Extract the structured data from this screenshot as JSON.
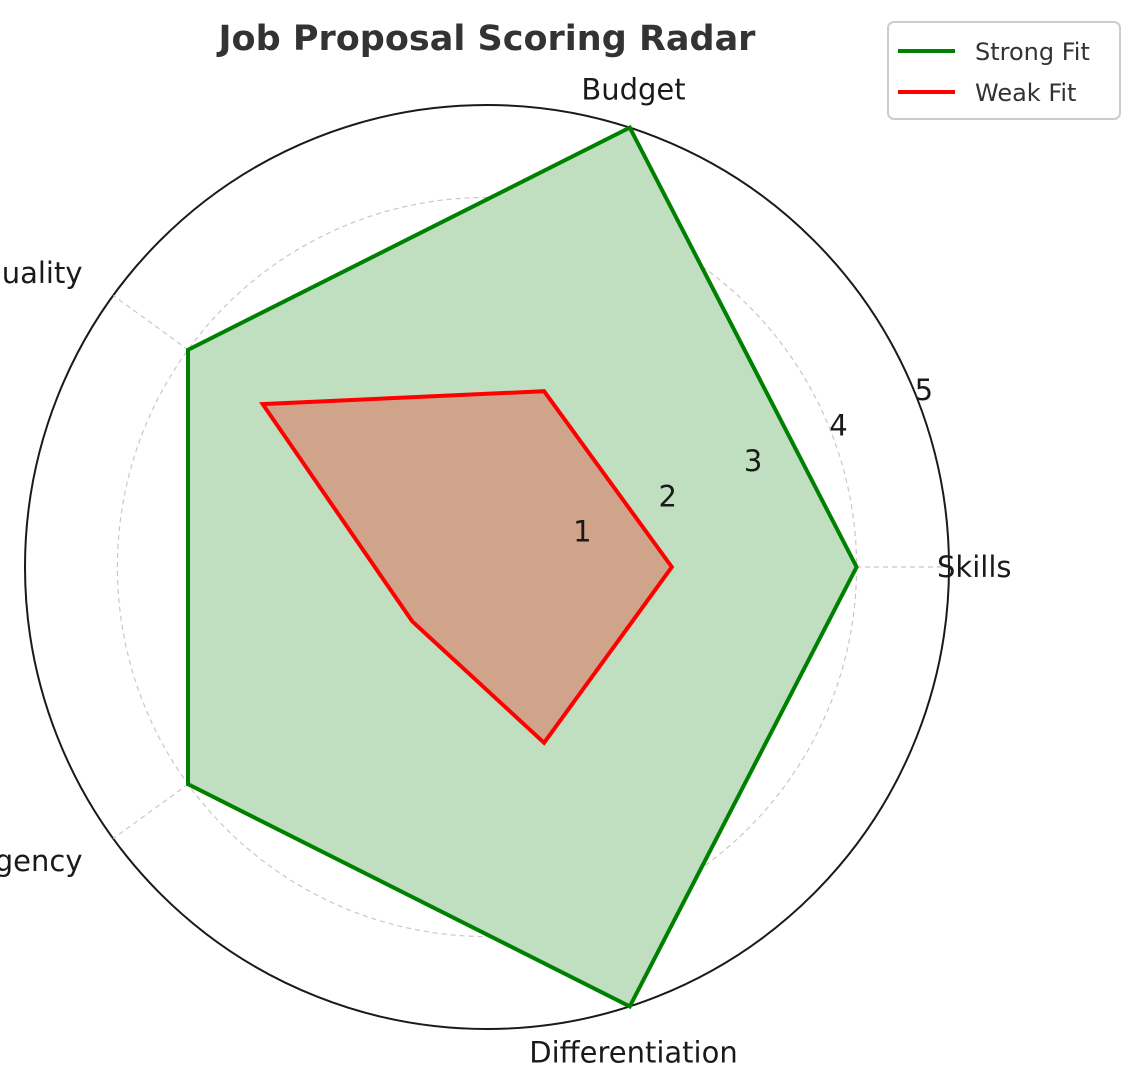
{
  "chart_data": {
    "type": "radar",
    "title": "Job Proposal Scoring Radar",
    "categories": [
      "Skills",
      "Budget",
      "Quality",
      "Urgency",
      "Differentiation"
    ],
    "rlim": [
      0,
      5
    ],
    "rticks": [
      1,
      2,
      3,
      4,
      5
    ],
    "grid": true,
    "legend_position": "top-right",
    "series": [
      {
        "name": "Strong Fit",
        "values": [
          4,
          5,
          4,
          4,
          5
        ],
        "color": "#008000",
        "fill": "#c0dfc0"
      },
      {
        "name": "Weak Fit",
        "values": [
          2,
          2,
          3,
          1,
          2
        ],
        "color": "#ff0000",
        "fill": "#cfa48b"
      }
    ]
  }
}
